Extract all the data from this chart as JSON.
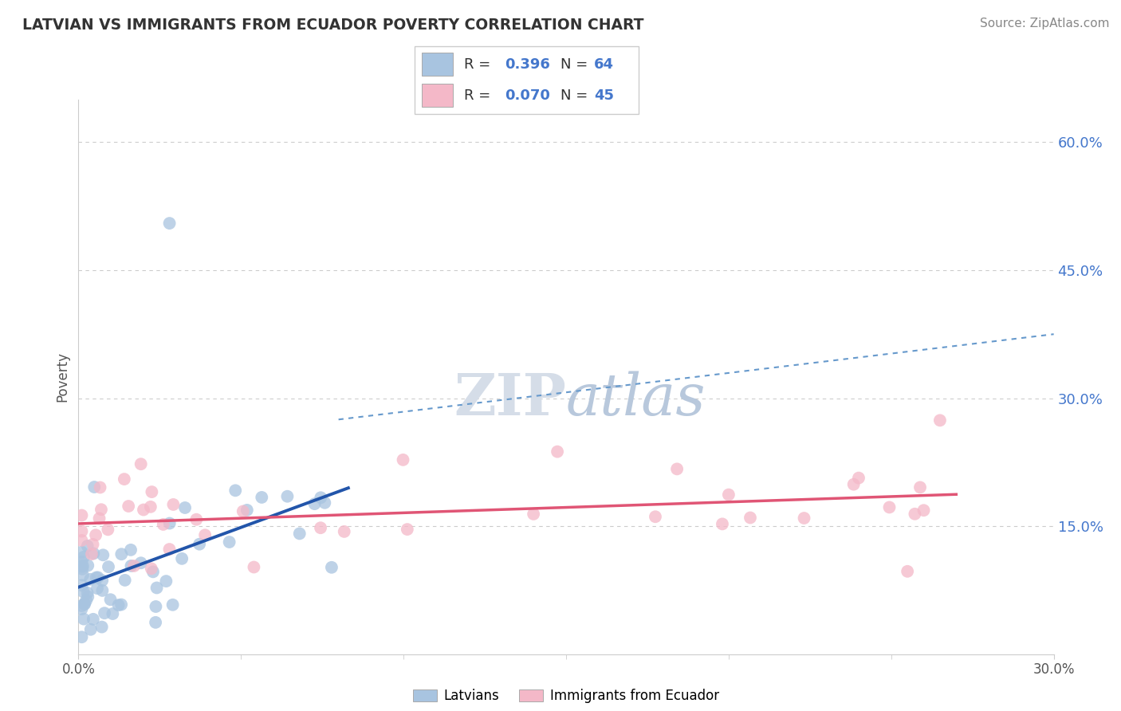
{
  "title": "LATVIAN VS IMMIGRANTS FROM ECUADOR POVERTY CORRELATION CHART",
  "source": "Source: ZipAtlas.com",
  "ylabel": "Poverty",
  "xlim": [
    0.0,
    0.3
  ],
  "ylim": [
    0.0,
    0.65
  ],
  "ytick_vals": [
    0.15,
    0.3,
    0.45,
    0.6
  ],
  "ytick_labels": [
    "15.0%",
    "30.0%",
    "45.0%",
    "60.0%"
  ],
  "xtick_vals": [
    0.0,
    0.3
  ],
  "xtick_labels": [
    "0.0%",
    "30.0%"
  ],
  "legend_r1": "0.396",
  "legend_n1": "64",
  "legend_r2": "0.070",
  "legend_n2": "45",
  "latvian_color": "#a8c4e0",
  "ecuador_color": "#f4b8c8",
  "latvian_line_color": "#2255aa",
  "ecuador_line_color": "#e05575",
  "dash_line_color": "#6699cc",
  "watermark_color": "#d5dde8",
  "background_color": "#ffffff",
  "grid_color": "#cccccc",
  "tick_label_color": "#4477cc",
  "title_color": "#333333",
  "source_color": "#888888",
  "latvian_seed": 42,
  "ecuador_seed": 13,
  "marker_size": 130
}
